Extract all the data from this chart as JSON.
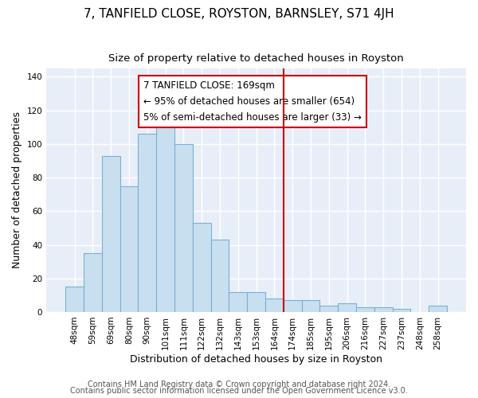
{
  "title": "7, TANFIELD CLOSE, ROYSTON, BARNSLEY, S71 4JH",
  "subtitle": "Size of property relative to detached houses in Royston",
  "xlabel": "Distribution of detached houses by size in Royston",
  "ylabel": "Number of detached properties",
  "bar_labels": [
    "48sqm",
    "59sqm",
    "69sqm",
    "80sqm",
    "90sqm",
    "101sqm",
    "111sqm",
    "122sqm",
    "132sqm",
    "143sqm",
    "153sqm",
    "164sqm",
    "174sqm",
    "185sqm",
    "195sqm",
    "206sqm",
    "216sqm",
    "227sqm",
    "237sqm",
    "248sqm",
    "258sqm"
  ],
  "bar_heights": [
    15,
    35,
    93,
    75,
    106,
    113,
    100,
    53,
    43,
    12,
    12,
    8,
    7,
    7,
    4,
    5,
    3,
    3,
    2,
    0,
    4
  ],
  "bar_color": "#c8dff0",
  "bar_edgecolor": "#7ab0d4",
  "vline_x_index": 12,
  "vline_color": "#cc0000",
  "annotation_line1": "7 TANFIELD CLOSE: 169sqm",
  "annotation_line2": "← 95% of detached houses are smaller (654)",
  "annotation_line3": "5% of semi-detached houses are larger (33) →",
  "annotation_box_edgecolor": "#cc0000",
  "annotation_box_facecolor": "white",
  "ylim": [
    0,
    145
  ],
  "yticks": [
    0,
    20,
    40,
    60,
    80,
    100,
    120,
    140
  ],
  "footer_line1": "Contains HM Land Registry data © Crown copyright and database right 2024.",
  "footer_line2": "Contains public sector information licensed under the Open Government Licence v3.0.",
  "figure_facecolor": "#ffffff",
  "axes_facecolor": "#e8eef8",
  "grid_color": "#ffffff",
  "title_fontsize": 11,
  "subtitle_fontsize": 9.5,
  "axis_label_fontsize": 9,
  "tick_fontsize": 7.5,
  "footer_fontsize": 7,
  "annotation_fontsize": 8.5
}
